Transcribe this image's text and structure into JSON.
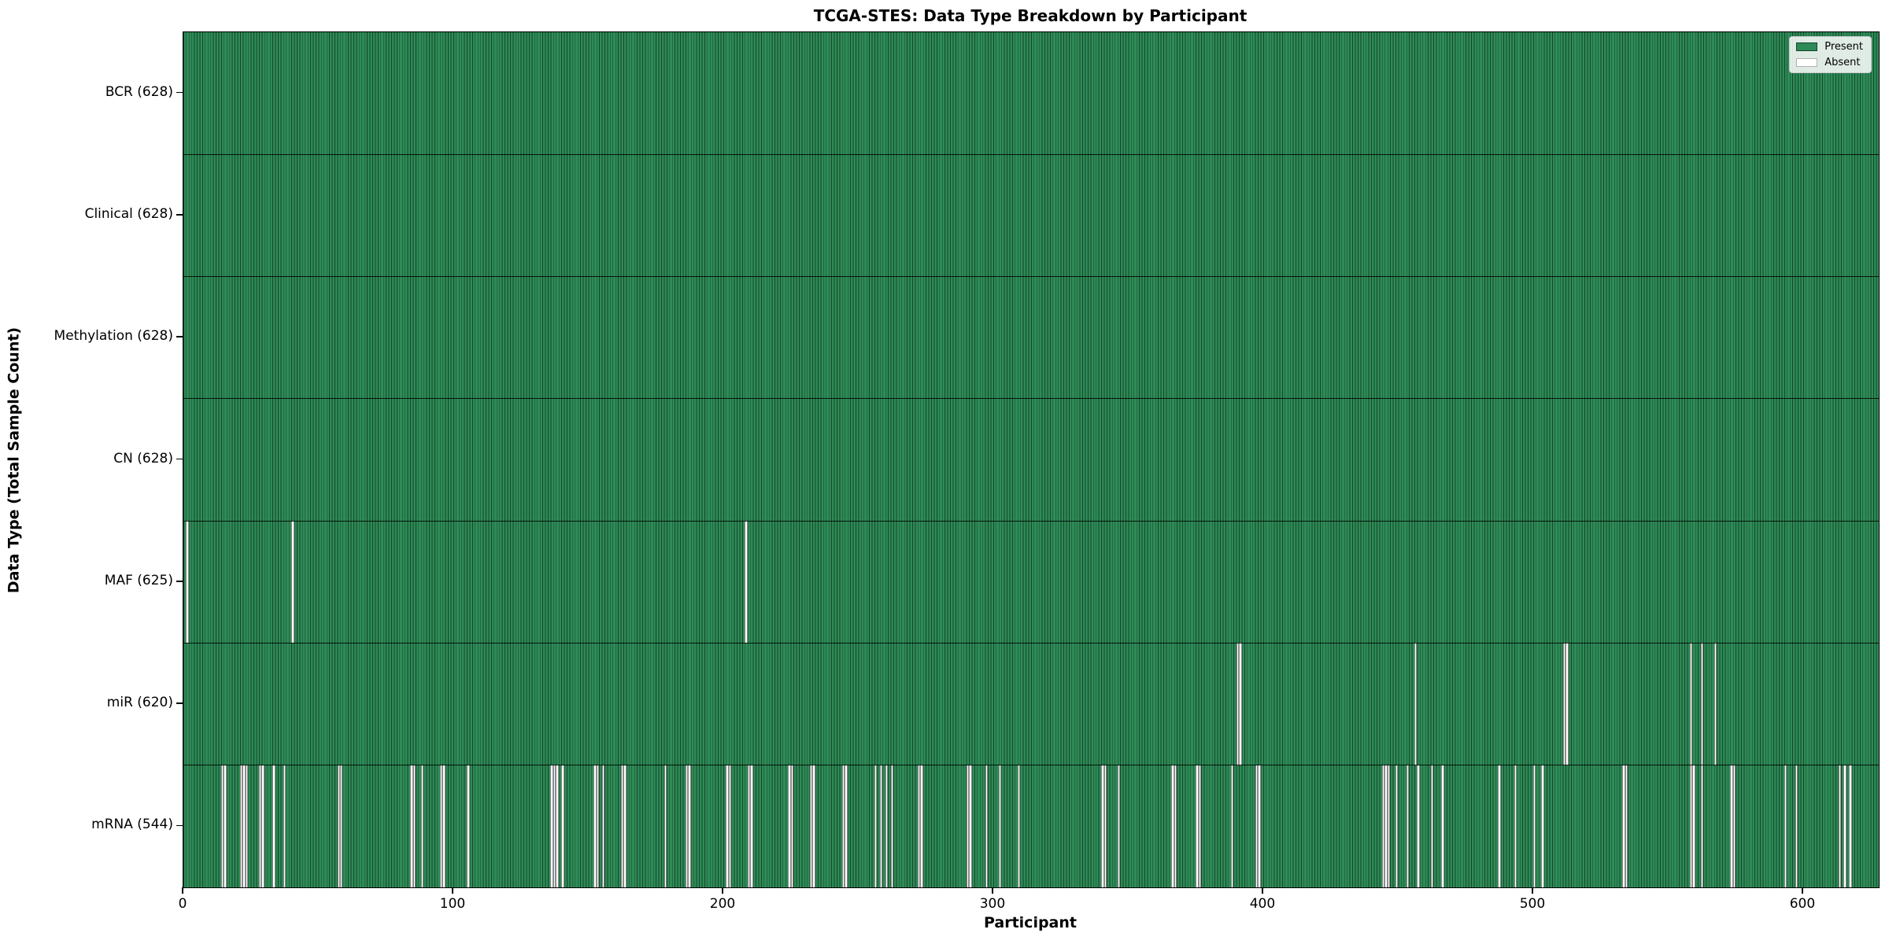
{
  "chart_data": {
    "type": "heatmap",
    "title": "TCGA-STES: Data Type Breakdown by Participant",
    "xlabel": "Participant",
    "ylabel": "Data Type (Total Sample Count)",
    "x_ticks": [
      0,
      100,
      200,
      300,
      400,
      500,
      600
    ],
    "x_range": [
      0,
      628
    ],
    "n_participants": 628,
    "categories": [
      "BCR (628)",
      "Clinical (628)",
      "Methylation (628)",
      "CN (628)",
      "MAF (625)",
      "miR (620)",
      "mRNA (544)"
    ],
    "rows": [
      {
        "data_type": "BCR",
        "label": "BCR (628)",
        "present_count": 628,
        "absent_participants": []
      },
      {
        "data_type": "Clinical",
        "label": "Clinical (628)",
        "present_count": 628,
        "absent_participants": []
      },
      {
        "data_type": "Methylation",
        "label": "Methylation (628)",
        "present_count": 628,
        "absent_participants": []
      },
      {
        "data_type": "CN",
        "label": "CN (628)",
        "present_count": 628,
        "absent_participants": []
      },
      {
        "data_type": "MAF",
        "label": "MAF (625)",
        "present_count": 625,
        "absent_participants": [
          1,
          40,
          208
        ]
      },
      {
        "data_type": "miR",
        "label": "miR (620)",
        "present_count": 620,
        "absent_participants": [
          390,
          391,
          456,
          511,
          512,
          558,
          562,
          567
        ]
      },
      {
        "data_type": "mRNA",
        "label": "mRNA (544)",
        "present_count": 544,
        "absent_participants": [
          14,
          15,
          21,
          22,
          23,
          28,
          29,
          33,
          37,
          57,
          58,
          84,
          85,
          88,
          95,
          96,
          105,
          136,
          137,
          138,
          140,
          152,
          153,
          155,
          162,
          163,
          178,
          186,
          187,
          201,
          202,
          209,
          210,
          224,
          225,
          232,
          233,
          244,
          245,
          256,
          258,
          260,
          262,
          272,
          273,
          290,
          291,
          297,
          302,
          309,
          340,
          341,
          346,
          366,
          367,
          375,
          376,
          388,
          397,
          398,
          444,
          445,
          446,
          449,
          453,
          457,
          462,
          466,
          487,
          493,
          500,
          503,
          533,
          534,
          558,
          559,
          562,
          573,
          574,
          593,
          597,
          613,
          615,
          617
        ]
      }
    ],
    "legend": {
      "position": "upper right",
      "entries": [
        {
          "label": "Present",
          "color": "#2e8b57"
        },
        {
          "label": "Absent",
          "color": "#ffffff"
        }
      ]
    },
    "colors": {
      "present": "#2e8b57",
      "absent": "#ffffff",
      "bar_edge": "#14452a",
      "frame": "#000000"
    },
    "grid": false
  }
}
